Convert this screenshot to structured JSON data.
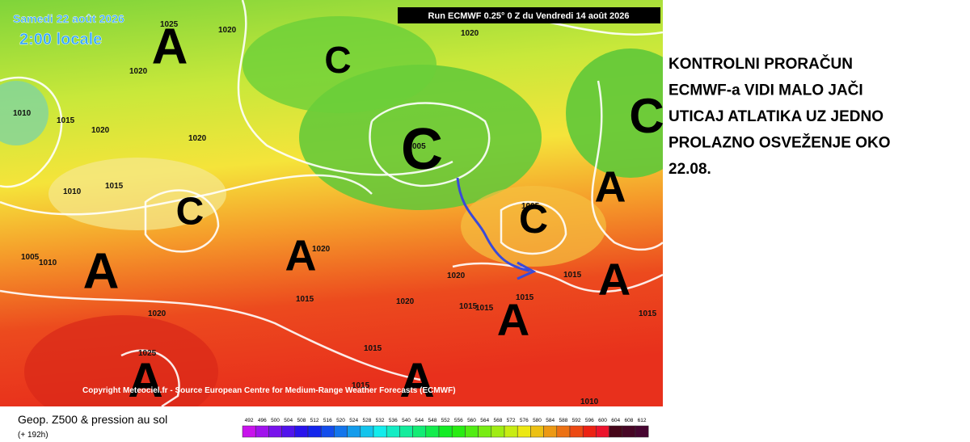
{
  "map": {
    "date": "Samedi 22 août 2026",
    "time": "2:00 locale",
    "run": "Run ECMWF 0.25° 0 Z du Vendredi 14 août 2026",
    "copyright": "Copyright Meteociel.fr - Source European Centre for Medium-Range Weather Forecasts (ECMWF)",
    "systems": [
      "A",
      "C",
      "C",
      "C",
      "A",
      "C",
      "C",
      "A",
      "A",
      "A",
      "A",
      "A",
      "A"
    ],
    "pressure_labels": [
      "1025",
      "1020",
      "1020",
      "1020",
      "1010",
      "1015",
      "1020",
      "1020",
      "1010",
      "1015",
      "1005",
      "1010",
      "1020",
      "005",
      "1005",
      "1020",
      "1015",
      "1020",
      "1020",
      "1015",
      "1015",
      "1015",
      "1015",
      "1015",
      "1025",
      "1015",
      "1015",
      "1010"
    ]
  },
  "legend": {
    "title": "Geop. Z500 & pression au sol",
    "subtitle": "(+ 192h)",
    "labels": [
      492,
      496,
      500,
      504,
      508,
      512,
      516,
      520,
      524,
      528,
      532,
      536,
      540,
      544,
      548,
      552,
      556,
      560,
      564,
      568,
      572,
      576,
      580,
      584,
      588,
      592,
      596,
      600,
      604,
      608,
      612
    ]
  },
  "annotation": {
    "lines": [
      "KONTROLNI PRORAČUN",
      "ECMWF-a VIDI MALO JAČI",
      "UTICAJ ATLATIKA UZ JEDNO",
      "PROLAZNO OSVEŽENJE OKO",
      "22.08."
    ]
  }
}
